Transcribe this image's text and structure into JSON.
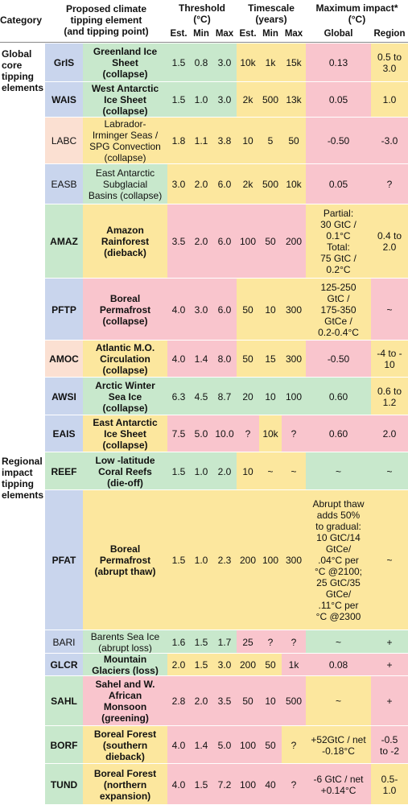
{
  "colors": {
    "blue": "#c9d5ed",
    "peach": "#fbe0d2",
    "green": "#c8e8cc",
    "yellow": "#fce79e",
    "pink": "#f9c5cd",
    "white": "#ffffff"
  },
  "header": {
    "category": "Category",
    "element": "Proposed climate\ntipping element\n(and tipping point)",
    "threshold": "Threshold\n(°C)",
    "timescale": "Timescale\n(years)",
    "impact": "Maximum impact*\n(°C)",
    "est": "Est.",
    "min": "Min",
    "max": "Max",
    "global": "Global",
    "region": "Region"
  },
  "categories": [
    {
      "label": "Global\ncore\ntipping\nelements"
    },
    {
      "label": "Regional\nimpact\ntipping\nelements"
    }
  ],
  "rows": [
    {
      "code": "GrIS",
      "code_bold": true,
      "code_bg": "blue",
      "name": "Greenland Ice\nSheet\n(collapse)",
      "name_bold": true,
      "name_bg": "green",
      "th": [
        "1.5",
        "0.8",
        "3.0"
      ],
      "th_bg": "green",
      "ts": [
        "10k",
        "1k",
        "15k"
      ],
      "ts_bg": "yellow",
      "global": "0.13",
      "global_bg": "pink",
      "region": "0.5 to\n3.0",
      "region_bg": "yellow"
    },
    {
      "code": "WAIS",
      "code_bold": true,
      "code_bg": "blue",
      "name": "West Antarctic\nIce Sheet\n(collapse)",
      "name_bold": true,
      "name_bg": "green",
      "th": [
        "1.5",
        "1.0",
        "3.0"
      ],
      "th_bg": "green",
      "ts": [
        "2k",
        "500",
        "13k"
      ],
      "ts_bg": "yellow",
      "global": "0.05",
      "global_bg": "pink",
      "region": "1.0",
      "region_bg": "yellow"
    },
    {
      "code": "LABC",
      "code_bold": false,
      "code_bg": "peach",
      "name": "Labrador-\nIrminger Seas /\nSPG Convection\n(collapse)",
      "name_bold": false,
      "name_bg": "yellow",
      "th": [
        "1.8",
        "1.1",
        "3.8"
      ],
      "th_bg": "yellow",
      "ts": [
        "10",
        "5",
        "50"
      ],
      "ts_bg": "yellow",
      "global": "-0.50",
      "global_bg": "pink",
      "region": "-3.0",
      "region_bg": "pink"
    },
    {
      "code": "EASB",
      "code_bold": false,
      "code_bg": "blue",
      "name": "East Antarctic\nSubglacial\nBasins (collapse)",
      "name_bold": false,
      "name_bg": "green",
      "th": [
        "3.0",
        "2.0",
        "6.0"
      ],
      "th_bg": "yellow",
      "ts": [
        "2k",
        "500",
        "10k"
      ],
      "ts_bg": "yellow",
      "global": "0.05",
      "global_bg": "pink",
      "region": "?",
      "region_bg": "pink"
    },
    {
      "code": "AMAZ",
      "code_bold": true,
      "code_bg": "green",
      "name": "Amazon\nRainforest\n(dieback)",
      "name_bold": true,
      "name_bg": "yellow",
      "th": [
        "3.5",
        "2.0",
        "6.0"
      ],
      "th_bg": "pink",
      "ts": [
        "100",
        "50",
        "200"
      ],
      "ts_bg": "pink",
      "global": "Partial:\n30 GtC /\n0.1°C\nTotal:\n75 GtC /\n0.2°C",
      "global_bg": "yellow",
      "region": "0.4 to\n2.0",
      "region_bg": "yellow"
    },
    {
      "code": "PFTP",
      "code_bold": true,
      "code_bg": "blue",
      "name": "Boreal\nPermafrost\n(collapse)",
      "name_bold": true,
      "name_bg": "pink",
      "th": [
        "4.0",
        "3.0",
        "6.0"
      ],
      "th_bg": "pink",
      "ts": [
        "50",
        "10",
        "300"
      ],
      "ts_bg": "yellow",
      "global": "125-250\nGtC /\n175-350\nGtCe /\n0.2-0.4°C",
      "global_bg": "yellow",
      "region": "~",
      "region_bg": "pink"
    },
    {
      "code": "AMOC",
      "code_bold": true,
      "code_bg": "peach",
      "name": "Atlantic M.O.\nCirculation\n(collapse)",
      "name_bold": true,
      "name_bg": "yellow",
      "th": [
        "4.0",
        "1.4",
        "8.0"
      ],
      "th_bg": "pink",
      "ts": [
        "50",
        "15",
        "300"
      ],
      "ts_bg": "yellow",
      "global": "-0.50",
      "global_bg": "pink",
      "region": "-4 to -\n10",
      "region_bg": "yellow"
    },
    {
      "code": "AWSI",
      "code_bold": true,
      "code_bg": "blue",
      "name": "Arctic Winter\nSea Ice\n(collapse)",
      "name_bold": true,
      "name_bg": "green",
      "th": [
        "6.3",
        "4.5",
        "8.7"
      ],
      "th_bg": "green",
      "ts": [
        "20",
        "10",
        "100"
      ],
      "ts_bg": "green",
      "global": "0.60",
      "global_bg": "green",
      "region": "0.6 to\n1.2",
      "region_bg": "yellow"
    },
    {
      "code": "EAIS",
      "code_bold": true,
      "code_bg": "blue",
      "name": "East Antarctic\nIce Sheet\n(collapse)",
      "name_bold": true,
      "name_bg": "yellow",
      "th": [
        "7.5",
        "5.0",
        "10.0"
      ],
      "th_bg": "pink",
      "ts": [
        "?",
        "10k",
        "?"
      ],
      "ts_bg_list": [
        "pink",
        "yellow",
        "pink"
      ],
      "global": "0.60",
      "global_bg": "pink",
      "region": "2.0",
      "region_bg": "pink"
    },
    {
      "code": "REEF",
      "code_bold": true,
      "code_bg": "green",
      "name": "Low -latitude\nCoral Reefs\n(die-off)",
      "name_bold": true,
      "name_bg": "green",
      "th": [
        "1.5",
        "1.0",
        "2.0"
      ],
      "th_bg": "green",
      "ts": [
        "10",
        "~",
        "~"
      ],
      "ts_bg": "yellow",
      "global": "~",
      "global_bg": "green",
      "region": "~",
      "region_bg": "green"
    },
    {
      "code": "PFAT",
      "code_bold": true,
      "code_bg": "blue",
      "name": "Boreal\nPermafrost\n(abrupt thaw)",
      "name_bold": true,
      "name_bg": "yellow",
      "th": [
        "1.5",
        "1.0",
        "2.3"
      ],
      "th_bg": "yellow",
      "ts": [
        "200",
        "100",
        "300"
      ],
      "ts_bg": "yellow",
      "global": "Abrupt thaw\nadds 50%\nto gradual:\n10 GtC/14\nGtCe/\n.04°C per\n°C @2100;\n25 GtC/35\nGtCe/\n.11°C per\n°C @2300",
      "global_bg": "yellow",
      "region": "~",
      "region_bg": "yellow"
    },
    {
      "code": "BARI",
      "code_bold": false,
      "code_bg": "blue",
      "name": "Barents Sea Ice\n(abrupt loss)",
      "name_bold": false,
      "name_bg": "green",
      "th": [
        "1.6",
        "1.5",
        "1.7"
      ],
      "th_bg": "green",
      "ts": [
        "25",
        "?",
        "?"
      ],
      "ts_bg": "pink",
      "global": "~",
      "global_bg": "green",
      "region": "+",
      "region_bg": "green"
    },
    {
      "code": "GLCR",
      "code_bold": true,
      "code_bg": "blue",
      "name": "Mountain\nGlaciers (loss)",
      "name_bold": true,
      "name_bg": "green",
      "th": [
        "2.0",
        "1.5",
        "3.0"
      ],
      "th_bg": "yellow",
      "ts": [
        "200",
        "50",
        "1k"
      ],
      "ts_bg_list": [
        "yellow",
        "yellow",
        "pink"
      ],
      "global": "0.08",
      "global_bg": "pink",
      "region": "+",
      "region_bg": "pink"
    },
    {
      "code": "SAHL",
      "code_bold": true,
      "code_bg": "green",
      "name": "Sahel and W.\nAfrican\nMonsoon\n(greening)",
      "name_bold": true,
      "name_bg": "pink",
      "th": [
        "2.8",
        "2.0",
        "3.5"
      ],
      "th_bg": "pink",
      "ts": [
        "50",
        "10",
        "500"
      ],
      "ts_bg": "pink",
      "global": "~",
      "global_bg": "yellow",
      "region": "+",
      "region_bg": "pink"
    },
    {
      "code": "BORF",
      "code_bold": true,
      "code_bg": "green",
      "name": "Boreal Forest\n(southern\ndieback)",
      "name_bold": true,
      "name_bg": "yellow",
      "th": [
        "4.0",
        "1.4",
        "5.0"
      ],
      "th_bg": "pink",
      "ts": [
        "100",
        "50",
        "?"
      ],
      "ts_bg_list": [
        "pink",
        "pink",
        "yellow"
      ],
      "global": "+52GtC / net\n-0.18°C",
      "global_bg": "yellow",
      "region": "-0.5\nto -2",
      "region_bg": "pink"
    },
    {
      "code": "TUND",
      "code_bold": true,
      "code_bg": "green",
      "name": "Boreal Forest\n(northern\nexpansion)",
      "name_bold": true,
      "name_bg": "yellow",
      "th": [
        "4.0",
        "1.5",
        "7.2"
      ],
      "th_bg": "pink",
      "ts": [
        "100",
        "40",
        "?"
      ],
      "ts_bg": "pink",
      "global": "-6 GtC / net\n+0.14°C",
      "global_bg": "pink",
      "region": "0.5-\n1.0",
      "region_bg": "yellow"
    }
  ]
}
